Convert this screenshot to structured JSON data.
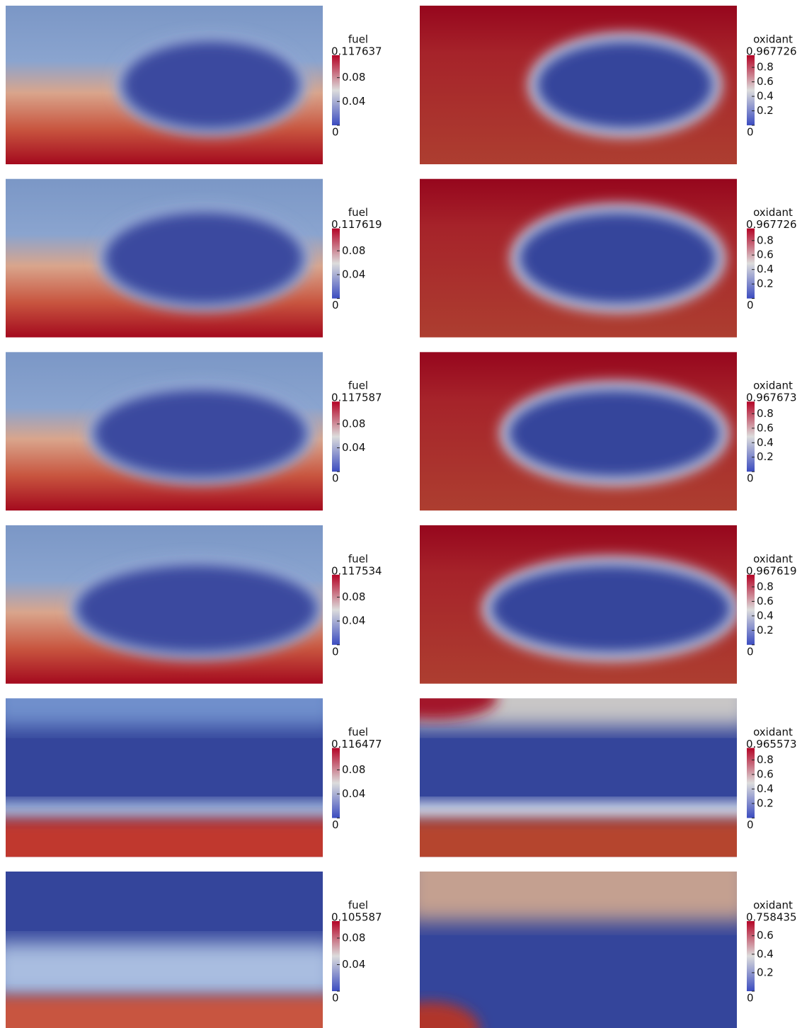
{
  "panels": [
    {
      "label": "fuel",
      "max": 0.117637,
      "ticks": [
        0.08,
        0.04,
        0
      ]
    },
    {
      "label": "oxidant",
      "max": 0.967726,
      "ticks": [
        0.8,
        0.6,
        0.4,
        0.2,
        0
      ]
    },
    {
      "label": "fuel",
      "max": 0.117619,
      "ticks": [
        0.08,
        0.04,
        0
      ]
    },
    {
      "label": "oxidant",
      "max": 0.967726,
      "ticks": [
        0.8,
        0.6,
        0.4,
        0.2,
        0
      ]
    },
    {
      "label": "fuel",
      "max": 0.117587,
      "ticks": [
        0.08,
        0.04,
        0
      ]
    },
    {
      "label": "oxidant",
      "max": 0.967673,
      "ticks": [
        0.8,
        0.6,
        0.4,
        0.2,
        0
      ]
    },
    {
      "label": "fuel",
      "max": 0.117534,
      "ticks": [
        0.08,
        0.04,
        0
      ]
    },
    {
      "label": "oxidant",
      "max": 0.967619,
      "ticks": [
        0.8,
        0.6,
        0.4,
        0.2,
        0
      ]
    },
    {
      "label": "fuel",
      "max": 0.116477,
      "ticks": [
        0.08,
        0.04,
        0
      ]
    },
    {
      "label": "oxidant",
      "max": 0.965573,
      "ticks": [
        0.8,
        0.6,
        0.4,
        0.2,
        0
      ]
    },
    {
      "label": "fuel",
      "max": 0.105587,
      "ticks": [
        0.08,
        0.04,
        0
      ]
    },
    {
      "label": "oxidant",
      "max": 0.758435,
      "ticks": [
        0.6,
        0.4,
        0.2,
        0
      ]
    }
  ]
}
